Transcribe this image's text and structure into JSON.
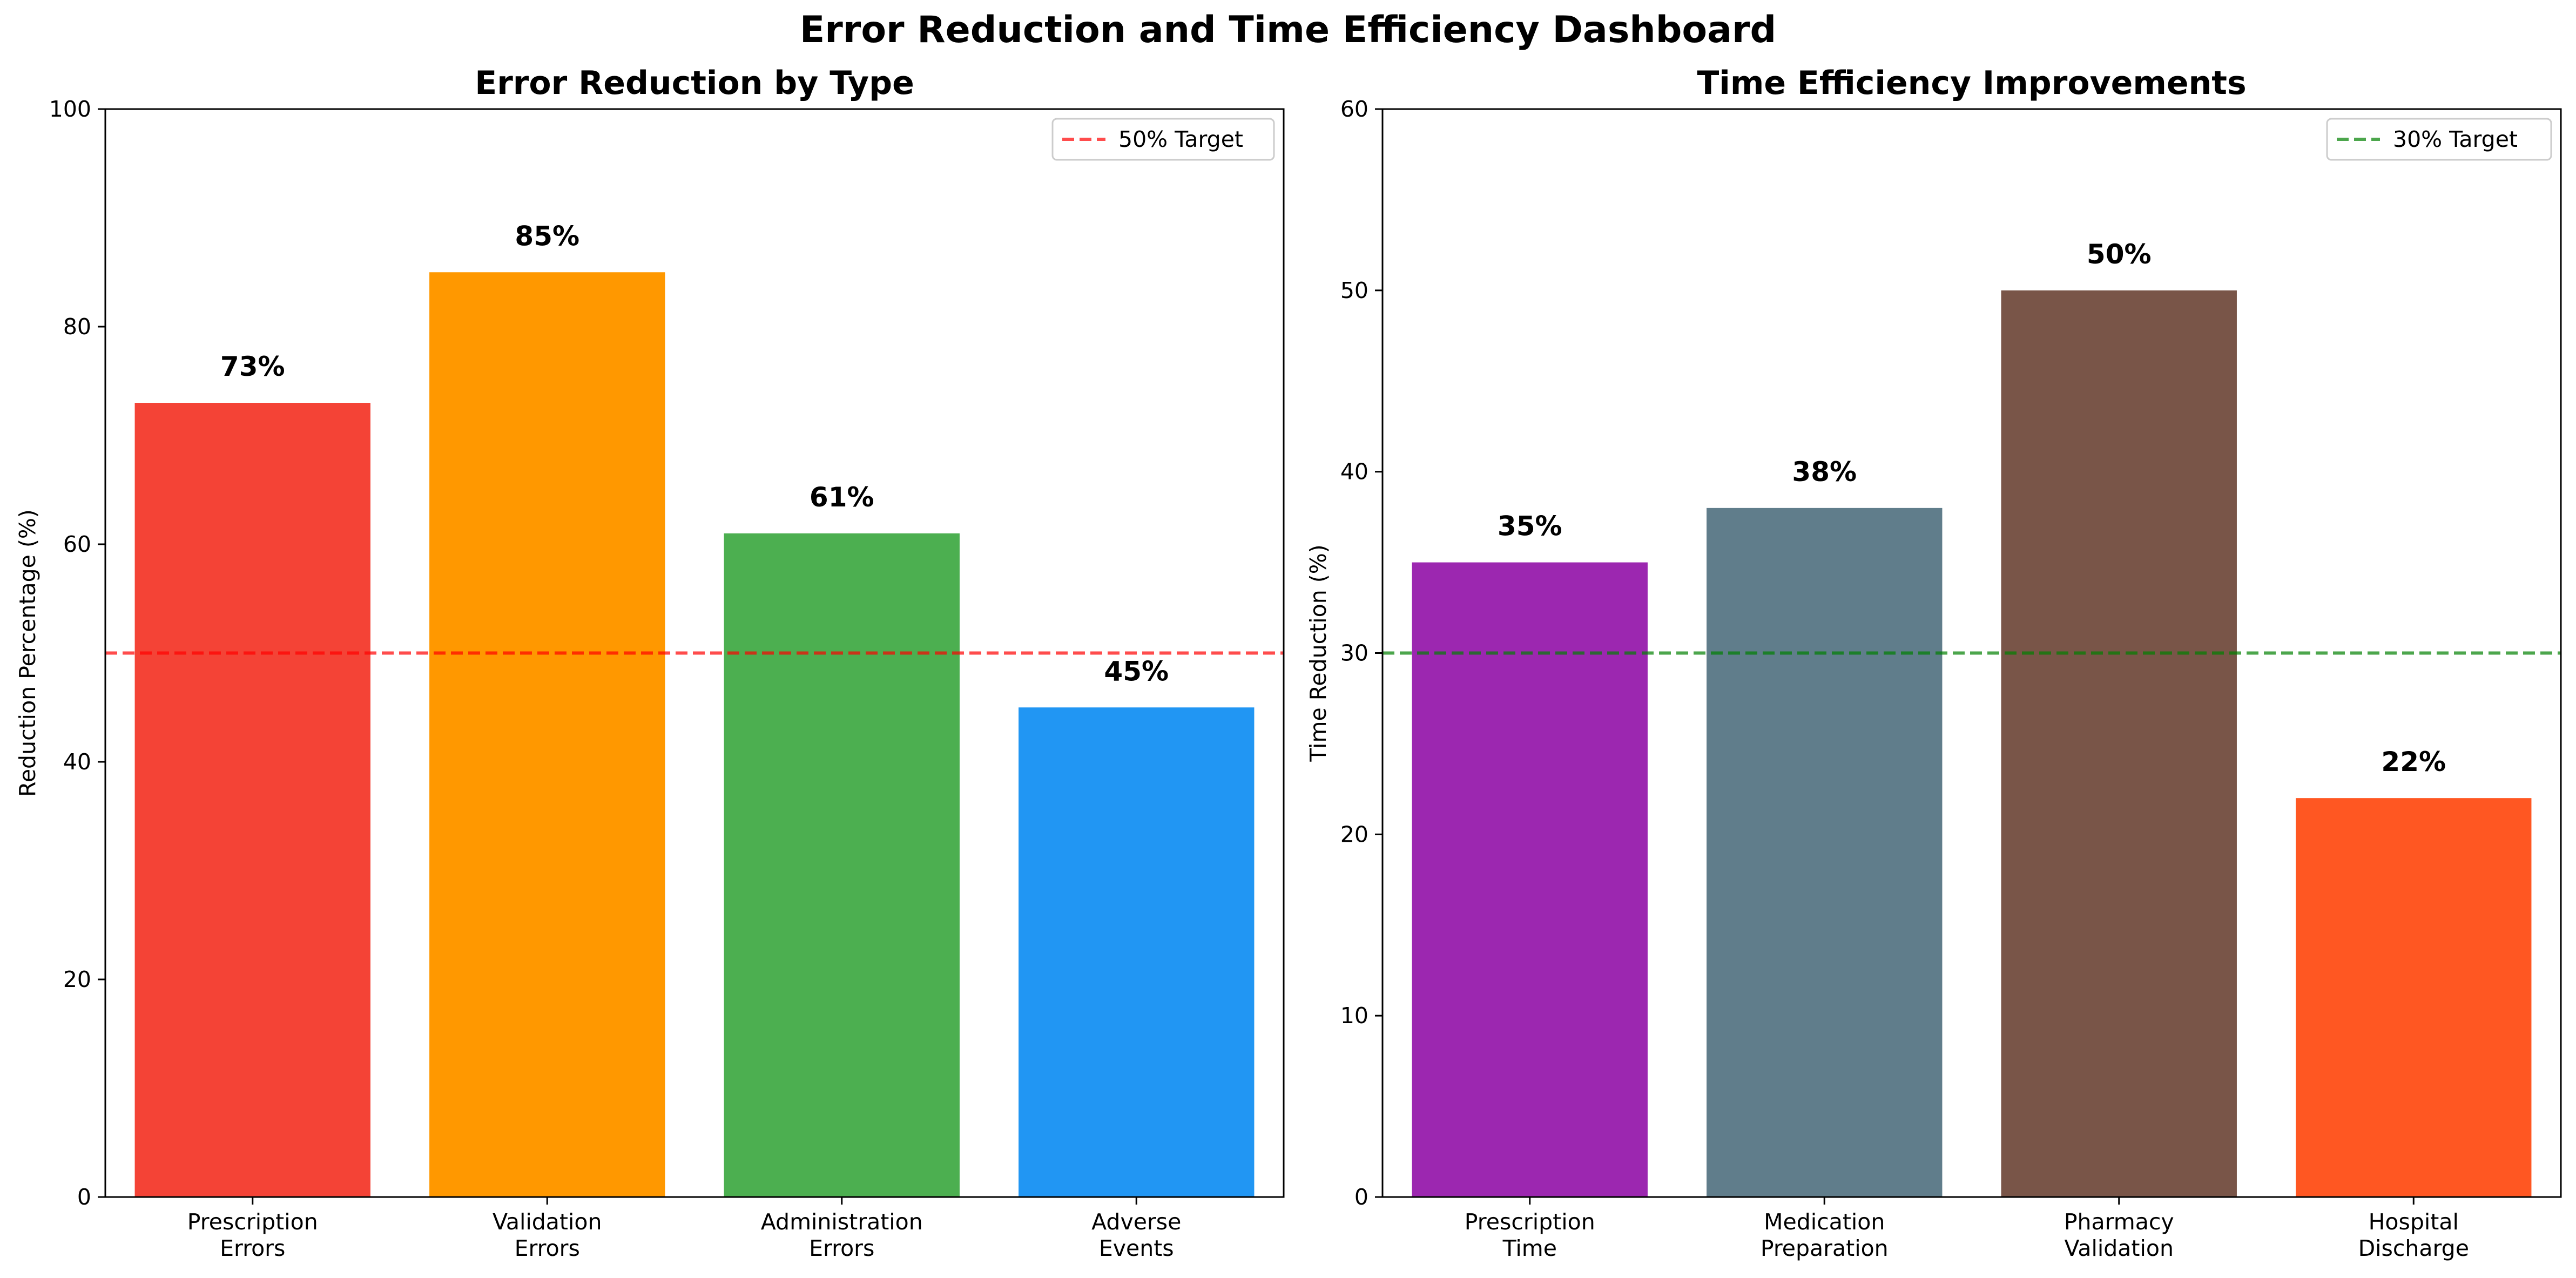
{
  "suptitle": "Error Reduction and Time Efficiency Dashboard",
  "chart_data": [
    {
      "type": "bar",
      "title": "Error Reduction by Type",
      "xlabel": "",
      "ylabel": "Reduction Percentage (%)",
      "ylim": [
        0,
        100
      ],
      "yticks": [
        0,
        20,
        40,
        60,
        80,
        100
      ],
      "categories": [
        "Prescription\nErrors",
        "Validation\nErrors",
        "Administration\nErrors",
        "Adverse\nEvents"
      ],
      "values": [
        73,
        85,
        61,
        45
      ],
      "value_labels": [
        "73%",
        "85%",
        "61%",
        "45%"
      ],
      "colors": [
        "#F44336",
        "#FF9800",
        "#4CAF50",
        "#2196F3"
      ],
      "target": {
        "value": 50,
        "label": "50% Target",
        "color": "#ff0000",
        "style": "dashed"
      },
      "legend_position": "top-right",
      "grid": false
    },
    {
      "type": "bar",
      "title": "Time Efficiency Improvements",
      "xlabel": "",
      "ylabel": "Time Reduction (%)",
      "ylim": [
        0,
        60
      ],
      "yticks": [
        0,
        10,
        20,
        30,
        40,
        50,
        60
      ],
      "categories": [
        "Prescription\nTime",
        "Medication\nPreparation",
        "Pharmacy\nValidation",
        "Hospital\nDischarge"
      ],
      "values": [
        35,
        38,
        50,
        22
      ],
      "value_labels": [
        "35%",
        "38%",
        "50%",
        "22%"
      ],
      "colors": [
        "#9C27B0",
        "#607D8B",
        "#795548",
        "#FF5722"
      ],
      "target": {
        "value": 30,
        "label": "30% Target",
        "color": "#008000",
        "style": "dashed"
      },
      "legend_position": "top-right",
      "grid": false
    }
  ]
}
